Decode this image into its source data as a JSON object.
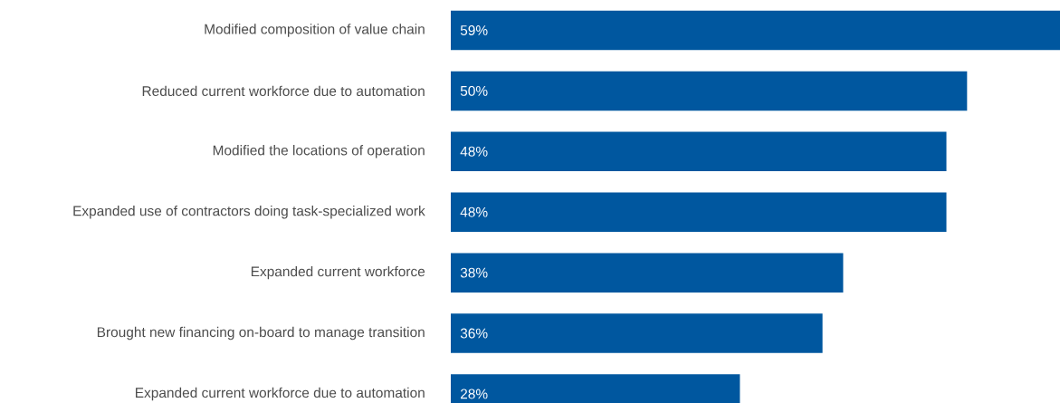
{
  "chart_data": {
    "type": "bar",
    "orientation": "horizontal",
    "color": "#00579f",
    "categories": [
      "Modified composition of value chain",
      "Reduced current workforce due to automation",
      "Modified the locations of operation",
      "Expanded use of contractors doing task-specialized work",
      "Expanded current workforce",
      "Brought new financing on-board to manage transition",
      "Expanded current workforce due to automation"
    ],
    "values": [
      59,
      50,
      48,
      48,
      38,
      36,
      28
    ],
    "value_labels": [
      "59%",
      "50%",
      "48%",
      "48%",
      "38%",
      "36%",
      "28%"
    ]
  }
}
